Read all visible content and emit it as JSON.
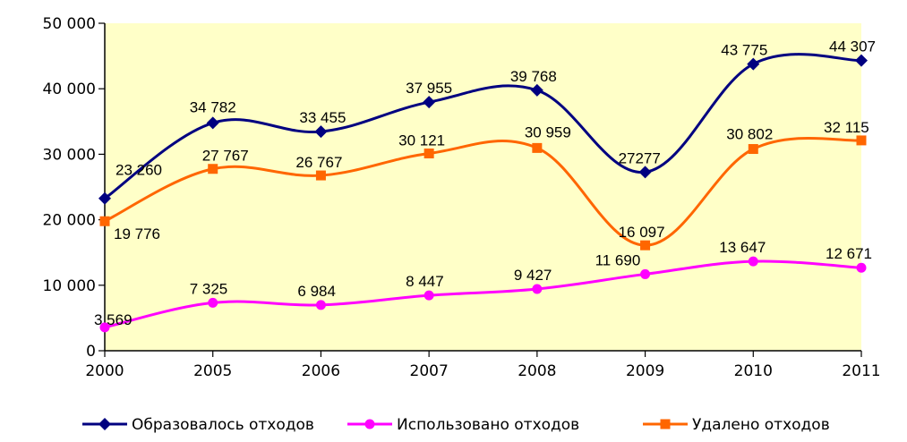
{
  "chart_data": {
    "type": "line",
    "categories": [
      "2000",
      "2005",
      "2006",
      "2007",
      "2008",
      "2009",
      "2010",
      "2011"
    ],
    "ylim": [
      0,
      50000
    ],
    "yticks": [
      0,
      10000,
      20000,
      30000,
      40000,
      50000
    ],
    "ytick_labels": [
      "0",
      "10 000",
      "20 000",
      "30 000",
      "40 000",
      "50 000"
    ],
    "grid": false,
    "legend_position": "bottom",
    "plot_background": "#ffffc8",
    "series": [
      {
        "name": "Образовалось отходов",
        "color": "#000080",
        "marker": "diamond",
        "values": [
          23260,
          34782,
          33455,
          37955,
          39768,
          27277,
          43775,
          44307
        ],
        "labels": [
          "23 260",
          "34 782",
          "33 455",
          "37 955",
          "39 768",
          "27277",
          "43 775",
          "44 307"
        ]
      },
      {
        "name": "Использовано отходов",
        "color": "#ff00ff",
        "marker": "circle",
        "values": [
          3569,
          7325,
          6984,
          8447,
          9427,
          11690,
          13647,
          12671
        ],
        "labels": [
          "3 569",
          "7 325",
          "6 984",
          "8 447",
          "9 427",
          "11 690",
          "13 647",
          "12 671"
        ]
      },
      {
        "name": "Удалено отходов",
        "color": "#ff6600",
        "marker": "square",
        "values": [
          19776,
          27767,
          26767,
          30121,
          30959,
          16097,
          30802,
          32115
        ],
        "labels": [
          "19 776",
          "27 767",
          "26 767",
          "30 121",
          "30 959",
          "16 097",
          "30 802",
          "32 115"
        ]
      }
    ]
  }
}
